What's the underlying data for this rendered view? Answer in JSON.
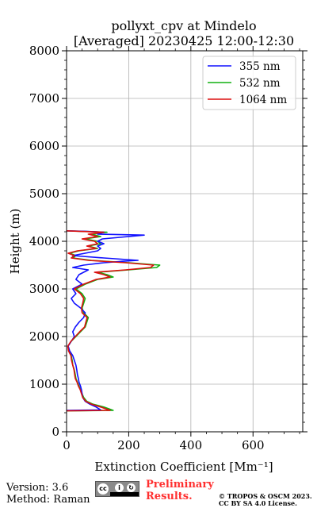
{
  "chart_data": {
    "type": "line",
    "orientation": "vertical-profile",
    "title_line1": "pollyxt_cpv at Mindelo",
    "title_line2": "[Averaged] 20230425 12:00-12:30",
    "xlabel": "Extinction Coefficient [Mm⁻¹]",
    "ylabel": "Height (m)",
    "xlim": [
      0,
      760
    ],
    "ylim": [
      0,
      8000
    ],
    "xticks": [
      "0",
      "200",
      "400",
      "600"
    ],
    "xtick_values": [
      0,
      200,
      400,
      600
    ],
    "yticks": [
      "0",
      "1000",
      "2000",
      "3000",
      "4000",
      "5000",
      "6000",
      "7000",
      "8000"
    ],
    "ytick_values": [
      0,
      1000,
      2000,
      3000,
      4000,
      5000,
      6000,
      7000,
      8000
    ],
    "grid": true,
    "legend_position": "top-right",
    "series": [
      {
        "name": "355 nm",
        "color": "#1010ff",
        "points": [
          [
            0,
            450
          ],
          [
            110,
            460
          ],
          [
            95,
            520
          ],
          [
            75,
            580
          ],
          [
            60,
            640
          ],
          [
            52,
            720
          ],
          [
            50,
            800
          ],
          [
            48,
            880
          ],
          [
            45,
            960
          ],
          [
            40,
            1040
          ],
          [
            38,
            1120
          ],
          [
            35,
            1200
          ],
          [
            33,
            1300
          ],
          [
            30,
            1400
          ],
          [
            25,
            1500
          ],
          [
            20,
            1600
          ],
          [
            10,
            1700
          ],
          [
            5,
            1800
          ],
          [
            15,
            1900
          ],
          [
            25,
            2000
          ],
          [
            20,
            2100
          ],
          [
            28,
            2200
          ],
          [
            40,
            2300
          ],
          [
            55,
            2400
          ],
          [
            60,
            2500
          ],
          [
            45,
            2600
          ],
          [
            25,
            2700
          ],
          [
            15,
            2800
          ],
          [
            30,
            2900
          ],
          [
            20,
            3000
          ],
          [
            50,
            3100
          ],
          [
            30,
            3200
          ],
          [
            40,
            3300
          ],
          [
            70,
            3400
          ],
          [
            20,
            3450
          ],
          [
            55,
            3500
          ],
          [
            120,
            3550
          ],
          [
            180,
            3580
          ],
          [
            230,
            3600
          ],
          [
            120,
            3650
          ],
          [
            20,
            3700
          ],
          [
            60,
            3750
          ],
          [
            100,
            3800
          ],
          [
            110,
            3850
          ],
          [
            100,
            3900
          ],
          [
            120,
            3950
          ],
          [
            100,
            4000
          ],
          [
            115,
            4050
          ],
          [
            250,
            4130
          ],
          [
            100,
            4150
          ],
          [
            120,
            4190
          ],
          [
            60,
            4210
          ],
          [
            0,
            4220
          ]
        ]
      },
      {
        "name": "532 nm",
        "color": "#10b010",
        "points": [
          [
            0,
            440
          ],
          [
            150,
            450
          ],
          [
            120,
            520
          ],
          [
            85,
            580
          ],
          [
            65,
            640
          ],
          [
            55,
            720
          ],
          [
            50,
            800
          ],
          [
            45,
            880
          ],
          [
            40,
            960
          ],
          [
            35,
            1040
          ],
          [
            30,
            1120
          ],
          [
            28,
            1200
          ],
          [
            25,
            1300
          ],
          [
            20,
            1400
          ],
          [
            18,
            1500
          ],
          [
            15,
            1600
          ],
          [
            8,
            1700
          ],
          [
            5,
            1800
          ],
          [
            15,
            1900
          ],
          [
            30,
            2000
          ],
          [
            45,
            2100
          ],
          [
            60,
            2200
          ],
          [
            65,
            2300
          ],
          [
            70,
            2400
          ],
          [
            55,
            2500
          ],
          [
            50,
            2600
          ],
          [
            55,
            2700
          ],
          [
            60,
            2800
          ],
          [
            50,
            2900
          ],
          [
            30,
            3000
          ],
          [
            60,
            3100
          ],
          [
            100,
            3200
          ],
          [
            150,
            3250
          ],
          [
            130,
            3300
          ],
          [
            100,
            3350
          ],
          [
            200,
            3400
          ],
          [
            290,
            3450
          ],
          [
            300,
            3500
          ],
          [
            200,
            3550
          ],
          [
            80,
            3600
          ],
          [
            20,
            3650
          ],
          [
            30,
            3700
          ],
          [
            10,
            3750
          ],
          [
            40,
            3800
          ],
          [
            100,
            3850
          ],
          [
            70,
            3900
          ],
          [
            110,
            3950
          ],
          [
            100,
            4000
          ],
          [
            60,
            4050
          ],
          [
            110,
            4100
          ],
          [
            80,
            4150
          ],
          [
            130,
            4190
          ],
          [
            50,
            4210
          ],
          [
            0,
            4220
          ]
        ]
      },
      {
        "name": "1064 nm",
        "color": "#dd0f0f",
        "points": [
          [
            0,
            440
          ],
          [
            140,
            450
          ],
          [
            110,
            520
          ],
          [
            80,
            580
          ],
          [
            62,
            640
          ],
          [
            52,
            720
          ],
          [
            48,
            800
          ],
          [
            44,
            880
          ],
          [
            38,
            960
          ],
          [
            34,
            1040
          ],
          [
            28,
            1120
          ],
          [
            26,
            1200
          ],
          [
            24,
            1300
          ],
          [
            20,
            1400
          ],
          [
            16,
            1500
          ],
          [
            14,
            1600
          ],
          [
            6,
            1700
          ],
          [
            4,
            1800
          ],
          [
            14,
            1900
          ],
          [
            28,
            2000
          ],
          [
            42,
            2100
          ],
          [
            58,
            2200
          ],
          [
            62,
            2300
          ],
          [
            66,
            2400
          ],
          [
            50,
            2500
          ],
          [
            48,
            2600
          ],
          [
            52,
            2700
          ],
          [
            55,
            2800
          ],
          [
            45,
            2900
          ],
          [
            25,
            3000
          ],
          [
            55,
            3100
          ],
          [
            95,
            3200
          ],
          [
            140,
            3250
          ],
          [
            120,
            3300
          ],
          [
            90,
            3350
          ],
          [
            190,
            3400
          ],
          [
            270,
            3450
          ],
          [
            280,
            3500
          ],
          [
            190,
            3550
          ],
          [
            70,
            3600
          ],
          [
            15,
            3650
          ],
          [
            25,
            3700
          ],
          [
            5,
            3750
          ],
          [
            35,
            3800
          ],
          [
            95,
            3850
          ],
          [
            65,
            3900
          ],
          [
            100,
            3950
          ],
          [
            90,
            4000
          ],
          [
            50,
            4050
          ],
          [
            100,
            4100
          ],
          [
            70,
            4150
          ],
          [
            120,
            4190
          ],
          [
            40,
            4210
          ],
          [
            0,
            4220
          ]
        ]
      }
    ]
  },
  "footer": {
    "version": "Version: 3.6",
    "method": "Method: Raman",
    "preliminary_line1": "Preliminary",
    "preliminary_line2": "Results.",
    "copyright_line1": "© TROPOS & OSCM 2023.",
    "copyright_line2": "CC BY SA 4.0 License.",
    "license_badge": {
      "cc": "cc",
      "by": "BY",
      "sa": "SA"
    }
  }
}
